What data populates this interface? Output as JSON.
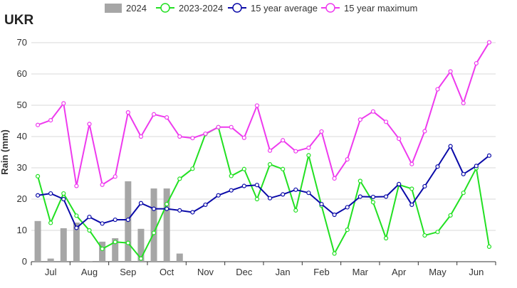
{
  "region": "UKR",
  "chart_data": {
    "type": "line",
    "title": "UKR",
    "ylabel": "Rain (mm)",
    "xlabel": "",
    "ylim": [
      0,
      70
    ],
    "yticks": [
      0,
      10,
      20,
      30,
      40,
      50,
      60,
      70
    ],
    "grid": true,
    "legend_position": "top",
    "x_period_count": 36,
    "month_labels": [
      "Jul",
      "Aug",
      "Sep",
      "Oct",
      "Nov",
      "Dec",
      "Jan",
      "Feb",
      "Mar",
      "Apr",
      "May",
      "Jun"
    ],
    "bars": {
      "name": "2024",
      "color": "#a6a6a6",
      "values": [
        13,
        1,
        10.7,
        12.5,
        0.2,
        6.4,
        7.5,
        25.7,
        10.5,
        23.4,
        23.4,
        2.6
      ]
    },
    "series": [
      {
        "name": "2023-2024",
        "color": "#22e022",
        "values": [
          27.3,
          12.4,
          21.8,
          14.7,
          10,
          4.1,
          6.3,
          6,
          1,
          9.2,
          18.4,
          26.5,
          29.7,
          40.8,
          43,
          27.4,
          29.6,
          20,
          31.1,
          29.6,
          16.4,
          34,
          17.9,
          2.6,
          10.2,
          25.8,
          19,
          7.5,
          24.6,
          23.3,
          8.4,
          9.5,
          14.8,
          22,
          29.9,
          4.8
        ]
      },
      {
        "name": "15 year average",
        "color": "#0a0aa8",
        "values": [
          21.2,
          21.8,
          20,
          10.8,
          14.3,
          12.2,
          13.4,
          13.4,
          18.7,
          16.9,
          16.9,
          16.4,
          15.8,
          18.2,
          21.2,
          22.8,
          24.2,
          24.5,
          20.3,
          21.5,
          23,
          22,
          18.4,
          15,
          17.4,
          20.8,
          20.7,
          20.8,
          24.8,
          18.2,
          24.1,
          30.4,
          36.9,
          28,
          30.6,
          33.9
        ]
      },
      {
        "name": "15 year maximum",
        "color": "#ee3aee",
        "values": [
          43.7,
          45.2,
          50.6,
          24.2,
          44,
          24.6,
          27.2,
          47.7,
          40,
          47.1,
          46.1,
          40,
          39.5,
          40.9,
          43,
          43,
          39.6,
          49.9,
          35.5,
          38.8,
          35.3,
          36.4,
          41.6,
          26.6,
          32.7,
          45.4,
          48,
          44.7,
          39.3,
          31.2,
          41.7,
          55.1,
          60.8,
          50.7,
          63.4,
          70.1
        ]
      }
    ]
  }
}
